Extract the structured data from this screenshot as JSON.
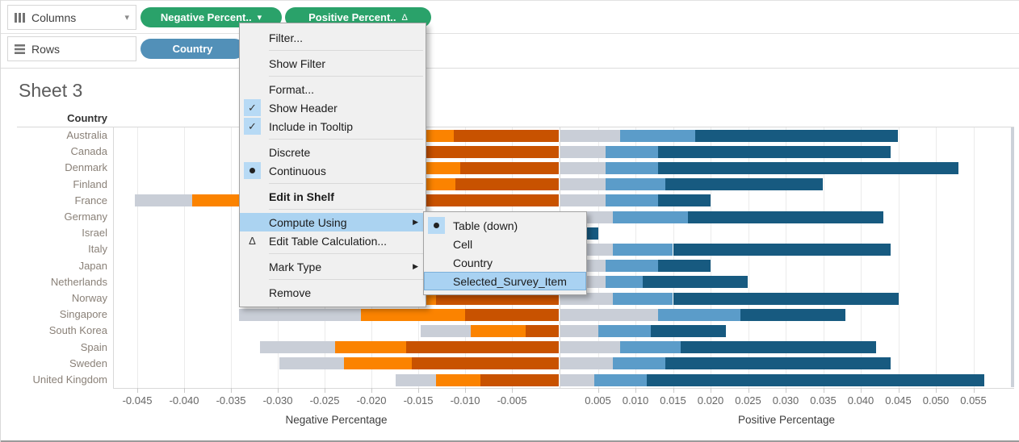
{
  "shelves": {
    "columns": {
      "label": "Columns",
      "pills": [
        {
          "label": "Negative Percent..",
          "icon": "caret-down-icon"
        },
        {
          "label": "Positive Percent..",
          "icon": "table-calc-delta-icon"
        }
      ]
    },
    "rows": {
      "label": "Rows",
      "pills": [
        {
          "label": "Country"
        }
      ]
    }
  },
  "sheet": {
    "title": "Sheet 3",
    "row_header": "Country"
  },
  "context_menu": {
    "items": [
      {
        "label": "Filter...",
        "separator_after": true
      },
      {
        "label": "Show Filter",
        "separator_after": true
      },
      {
        "label": "Format..."
      },
      {
        "label": "Show Header",
        "icon": "check"
      },
      {
        "label": "Include in Tooltip",
        "icon": "check",
        "separator_after": true
      },
      {
        "label": "Discrete"
      },
      {
        "label": "Continuous",
        "icon": "radio",
        "separator_after": true
      },
      {
        "label": "Edit in Shelf",
        "bold": true,
        "separator_after": true
      },
      {
        "label": "Compute Using",
        "highlighted": true,
        "has_submenu": true
      },
      {
        "label": "Edit Table Calculation...",
        "icon": "triangle",
        "separator_after": true
      },
      {
        "label": "Mark Type",
        "has_submenu": true,
        "separator_after": true
      },
      {
        "label": "Remove"
      }
    ]
  },
  "submenu": {
    "parent_item": "Compute Using",
    "items": [
      {
        "label": "Table (down)",
        "icon": "radio"
      },
      {
        "label": "Cell"
      },
      {
        "label": "Country"
      },
      {
        "label": "Selected_Survey_Item",
        "highlighted": true
      }
    ]
  },
  "colors": {
    "pill_measure_green": "#2aa26a",
    "pill_dimension_blue": "#5290b8",
    "menu_highlight_blue": "#abd3f1",
    "bar_neutral_gray": "#c9ced7",
    "bar_light_orange": "#fb8300",
    "bar_dark_orange": "#c85200",
    "bar_medium_blue": "#5b9cc9",
    "bar_dark_blue": "#175a80"
  },
  "chart_data": {
    "type": "bar",
    "subtype": "diverging-stacked-horizontal",
    "title": "Sheet 3",
    "row_dimension": "Country",
    "categories": [
      "Australia",
      "Canada",
      "Denmark",
      "Finland",
      "France",
      "Germany",
      "Israel",
      "Italy",
      "Japan",
      "Netherlands",
      "Norway",
      "Singapore",
      "South Korea",
      "Spain",
      "Sweden",
      "United Kingdom"
    ],
    "axes": {
      "negative": {
        "label": "Negative Percentage",
        "ticks": [
          -0.045,
          -0.04,
          -0.035,
          -0.03,
          -0.025,
          -0.02,
          -0.015,
          -0.01,
          -0.005
        ],
        "range": [
          -0.0475,
          0
        ]
      },
      "positive": {
        "label": "Positive Percentage",
        "ticks": [
          0.005,
          0.01,
          0.015,
          0.02,
          0.025,
          0.03,
          0.035,
          0.04,
          0.045,
          0.05,
          0.055
        ],
        "range": [
          0,
          0.06
        ]
      }
    },
    "grid": true,
    "series": [
      {
        "name": "negative-neutral-gray",
        "side": "negative",
        "stack_order_from_axis": 3,
        "color": "#c9ced7",
        "values": [
          0.006,
          0.005,
          0.005,
          0.006,
          0.0062,
          0.005,
          0.001,
          0.005,
          0.006,
          0.005,
          0.005,
          0.013,
          0.0053,
          0.008,
          0.0069,
          0.0043
        ]
      },
      {
        "name": "negative-light-orange",
        "side": "negative",
        "stack_order_from_axis": 2,
        "color": "#fb8300",
        "values": [
          0.0115,
          0.01,
          0.01,
          0.011,
          0.014,
          0.008,
          0.0015,
          0.009,
          0.01,
          0.008,
          0.009,
          0.0111,
          0.0059,
          0.0076,
          0.0072,
          0.0047
        ]
      },
      {
        "name": "negative-dark-orange",
        "side": "negative",
        "stack_order_from_axis": 1,
        "color": "#c85200",
        "values": [
          0.0112,
          0.018,
          0.0105,
          0.011,
          0.0251,
          0.014,
          0.0025,
          0.013,
          0.012,
          0.011,
          0.0131,
          0.01,
          0.0035,
          0.0163,
          0.0157,
          0.0084
        ]
      },
      {
        "name": "positive-neutral-gray",
        "side": "positive",
        "stack_order_from_axis": 1,
        "color": "#c9ced7",
        "values": [
          0.008,
          0.006,
          0.006,
          0.006,
          0.006,
          0.007,
          0.001,
          0.007,
          0.006,
          0.006,
          0.007,
          0.013,
          0.005,
          0.008,
          0.007,
          0.0045
        ]
      },
      {
        "name": "positive-medium-blue",
        "side": "positive",
        "stack_order_from_axis": 2,
        "color": "#5b9cc9",
        "values": [
          0.01,
          0.007,
          0.007,
          0.008,
          0.007,
          0.01,
          0.0015,
          0.008,
          0.007,
          0.005,
          0.008,
          0.011,
          0.007,
          0.008,
          0.007,
          0.007
        ]
      },
      {
        "name": "positive-dark-blue",
        "side": "positive",
        "stack_order_from_axis": 3,
        "color": "#175a80",
        "values": [
          0.027,
          0.031,
          0.04,
          0.021,
          0.007,
          0.026,
          0.0025,
          0.029,
          0.007,
          0.014,
          0.03,
          0.014,
          0.01,
          0.026,
          0.03,
          0.045
        ]
      }
    ]
  }
}
